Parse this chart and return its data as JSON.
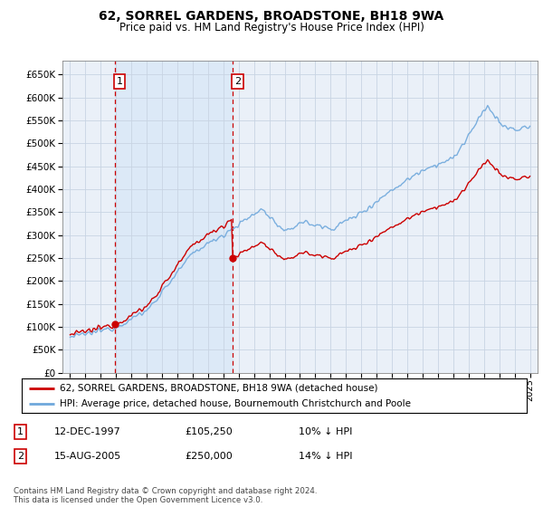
{
  "title": "62, SORREL GARDENS, BROADSTONE, BH18 9WA",
  "subtitle": "Price paid vs. HM Land Registry's House Price Index (HPI)",
  "ytick_vals": [
    0,
    50000,
    100000,
    150000,
    200000,
    250000,
    300000,
    350000,
    400000,
    450000,
    500000,
    550000,
    600000,
    650000
  ],
  "ylim": [
    0,
    680000
  ],
  "sale1_year": 1997.95,
  "sale1_price": 105250,
  "sale2_year": 2005.62,
  "sale2_price": 250000,
  "hpi_color": "#6fa8dc",
  "price_color": "#cc0000",
  "dashed_color": "#cc0000",
  "bg_color": "#dce9f7",
  "shade_color": "#dce9f7",
  "grid_color": "#c0c8d8",
  "legend_label1": "62, SORREL GARDENS, BROADSTONE, BH18 9WA (detached house)",
  "legend_label2": "HPI: Average price, detached house, Bournemouth Christchurch and Poole",
  "table_row1": [
    "1",
    "12-DEC-1997",
    "£105,250",
    "10% ↓ HPI"
  ],
  "table_row2": [
    "2",
    "15-AUG-2005",
    "£250,000",
    "14% ↓ HPI"
  ],
  "footer": "Contains HM Land Registry data © Crown copyright and database right 2024.\nThis data is licensed under the Open Government Licence v3.0.",
  "x_start_year": 1995,
  "x_end_year": 2025,
  "xlim_left": 1994.5,
  "xlim_right": 2025.5
}
